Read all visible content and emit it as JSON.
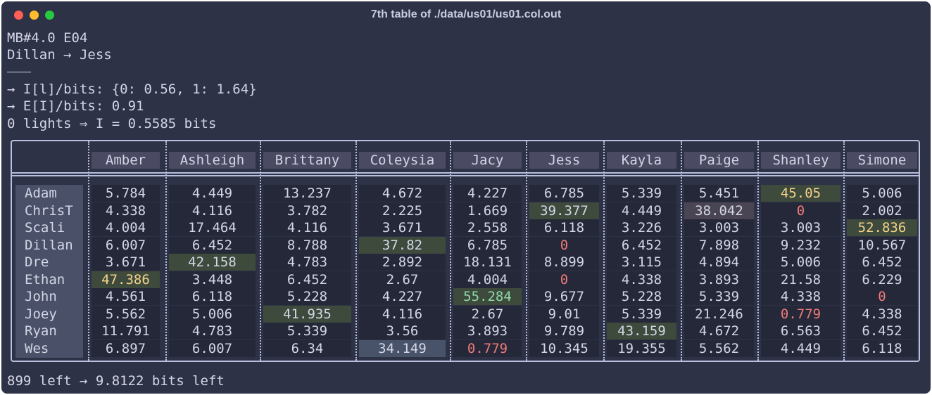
{
  "window": {
    "title": "7th table of ./data/us01/us01.col.out"
  },
  "header_lines": [
    "MB#4.0 E04",
    "Dillan → Jess",
    "→ I[l]/bits: {0: 0.56, 1: 1.64}",
    "→ E[I]/bits: 0.91",
    "0 lights ⇒ I = 0.5585 bits"
  ],
  "footer": "899 left → 9.8122 bits left",
  "colors": {
    "background": "#2e3246",
    "border": "#b9bfdf",
    "header_cell": "#4a4b63",
    "highlight_green": "#3d4a3c",
    "highlight_blue": "#485369",
    "text_yellow": "#f6d38b",
    "text_green": "#8fd9a8",
    "text_red": "#ee7a7a"
  },
  "table": {
    "columns": [
      "Amber",
      "Ashleigh",
      "Brittany",
      "Coleysia",
      "Jacy",
      "Jess",
      "Kayla",
      "Paige",
      "Shanley",
      "Simone"
    ],
    "rows": [
      {
        "name": "Adam",
        "values": [
          "5.784",
          "4.449",
          "13.237",
          "4.672",
          "4.227",
          "6.785",
          "5.339",
          "5.451",
          "45.05",
          "5.006"
        ]
      },
      {
        "name": "ChrisT",
        "values": [
          "4.338",
          "4.116",
          "3.782",
          "2.225",
          "1.669",
          "39.377",
          "4.449",
          "38.042",
          "0",
          "2.002"
        ]
      },
      {
        "name": "Scali",
        "values": [
          "4.004",
          "17.464",
          "4.116",
          "3.671",
          "2.558",
          "6.118",
          "3.226",
          "3.003",
          "3.003",
          "52.836"
        ]
      },
      {
        "name": "Dillan",
        "values": [
          "6.007",
          "6.452",
          "8.788",
          "37.82",
          "6.785",
          "0",
          "6.452",
          "7.898",
          "9.232",
          "10.567"
        ]
      },
      {
        "name": "Dre",
        "values": [
          "3.671",
          "42.158",
          "4.783",
          "2.892",
          "18.131",
          "8.899",
          "3.115",
          "4.894",
          "5.006",
          "6.452"
        ]
      },
      {
        "name": "Ethan",
        "values": [
          "47.386",
          "3.448",
          "6.452",
          "2.67",
          "4.004",
          "0",
          "4.338",
          "3.893",
          "21.58",
          "6.229"
        ]
      },
      {
        "name": "John",
        "values": [
          "4.561",
          "6.118",
          "5.228",
          "4.227",
          "55.284",
          "9.677",
          "5.228",
          "5.339",
          "4.338",
          "0"
        ]
      },
      {
        "name": "Joey",
        "values": [
          "5.562",
          "5.006",
          "41.935",
          "4.116",
          "2.67",
          "9.01",
          "5.339",
          "21.246",
          "0.779",
          "4.338"
        ]
      },
      {
        "name": "Ryan",
        "values": [
          "11.791",
          "4.783",
          "5.339",
          "3.56",
          "3.893",
          "9.789",
          "43.159",
          "4.672",
          "6.563",
          "6.452"
        ]
      },
      {
        "name": "Wes",
        "values": [
          "6.897",
          "6.007",
          "6.34",
          "34.149",
          "0.779",
          "10.345",
          "19.355",
          "5.562",
          "4.449",
          "6.118"
        ]
      }
    ],
    "highlights": [
      {
        "row": 0,
        "col": 8,
        "bg": "hi-green",
        "text": "t-yellow"
      },
      {
        "row": 1,
        "col": 5,
        "bg": "hi-green",
        "text": ""
      },
      {
        "row": 1,
        "col": 7,
        "bg": "hi-mauve",
        "text": ""
      },
      {
        "row": 1,
        "col": 8,
        "bg": "",
        "text": "t-red"
      },
      {
        "row": 2,
        "col": 9,
        "bg": "hi-green",
        "text": "t-yellow"
      },
      {
        "row": 3,
        "col": 3,
        "bg": "hi-green",
        "text": ""
      },
      {
        "row": 3,
        "col": 5,
        "bg": "",
        "text": "t-red"
      },
      {
        "row": 4,
        "col": 1,
        "bg": "hi-green",
        "text": ""
      },
      {
        "row": 5,
        "col": 0,
        "bg": "hi-green",
        "text": "t-yellow"
      },
      {
        "row": 5,
        "col": 5,
        "bg": "",
        "text": "t-red"
      },
      {
        "row": 6,
        "col": 4,
        "bg": "hi-green",
        "text": "t-green"
      },
      {
        "row": 6,
        "col": 9,
        "bg": "",
        "text": "t-red"
      },
      {
        "row": 7,
        "col": 2,
        "bg": "hi-green",
        "text": ""
      },
      {
        "row": 7,
        "col": 8,
        "bg": "",
        "text": "t-red"
      },
      {
        "row": 8,
        "col": 6,
        "bg": "hi-green",
        "text": ""
      },
      {
        "row": 9,
        "col": 3,
        "bg": "hi-blue",
        "text": ""
      },
      {
        "row": 9,
        "col": 4,
        "bg": "",
        "text": "t-red"
      }
    ]
  }
}
